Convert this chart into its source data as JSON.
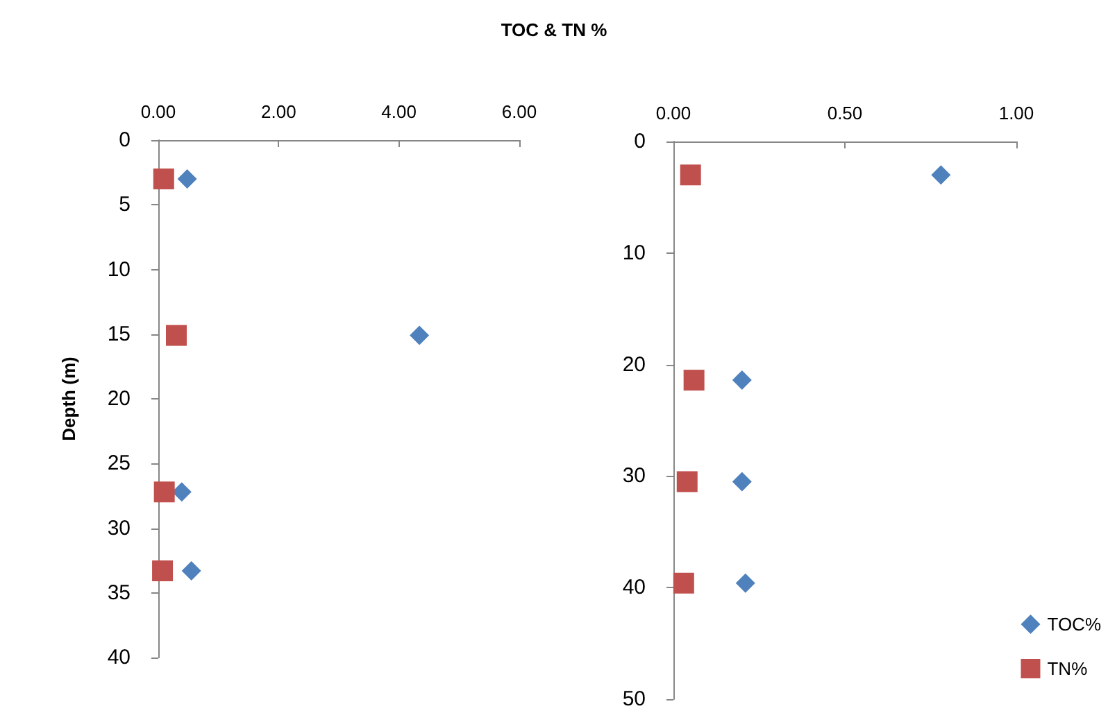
{
  "chart_data": [
    {
      "type": "scatter",
      "title": "TOC & TN %",
      "ylabel": "Depth (m)",
      "legend": false,
      "grid": false,
      "xlim": [
        0,
        6
      ],
      "xticks": [
        {
          "value": 0,
          "label": "0.00"
        },
        {
          "value": 2,
          "label": "2.00"
        },
        {
          "value": 4,
          "label": "4.00"
        },
        {
          "value": 6,
          "label": "6.00"
        }
      ],
      "ylim": [
        40,
        0
      ],
      "yticks": [
        0,
        5,
        10,
        15,
        20,
        25,
        30,
        35,
        40
      ],
      "series": [
        {
          "color": "#4f81bd",
          "marker": "diamond",
          "x": [
            0.48,
            4.34,
            0.39,
            0.55
          ],
          "values": [
            3,
            15.1,
            27.2,
            33.3
          ]
        },
        {
          "color": "#c0504d",
          "marker": "square",
          "x": [
            0.09,
            0.3,
            0.1,
            0.07
          ],
          "values": [
            3,
            15.1,
            27.2,
            33.3
          ]
        }
      ]
    },
    {
      "type": "scatter",
      "legend": "bottom right",
      "grid": false,
      "xlim": [
        0,
        1
      ],
      "xticks": [
        {
          "value": 0,
          "label": "0.00"
        },
        {
          "value": 0.5,
          "label": "0.50"
        },
        {
          "value": 1,
          "label": "1.00"
        }
      ],
      "ylim": [
        50,
        0
      ],
      "yticks": [
        0,
        10,
        20,
        30,
        40,
        50
      ],
      "series": [
        {
          "name": "TOC%",
          "color": "#4f81bd",
          "marker": "diamond",
          "x": [
            0.78,
            0.2,
            0.2,
            0.21
          ],
          "values": [
            3,
            21.4,
            30.5,
            39.6
          ]
        },
        {
          "name": "TN%",
          "color": "#c0504d",
          "marker": "square",
          "x": [
            0.05,
            0.06,
            0.04,
            0.03
          ],
          "values": [
            3,
            21.4,
            30.5,
            39.6
          ]
        }
      ]
    }
  ]
}
